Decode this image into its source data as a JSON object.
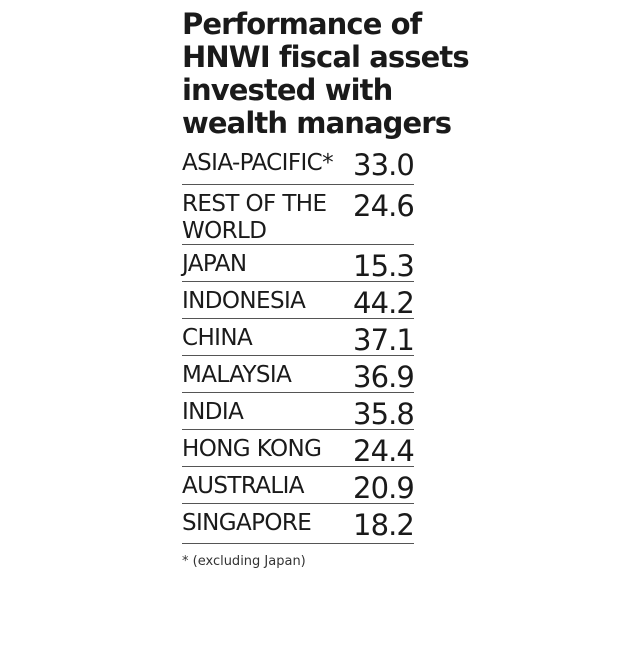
{
  "chart_data": {
    "type": "table",
    "title": "Performance of HNWI fiscal assets invested with wealth managers",
    "title_lines": [
      "Performance of",
      "HNWI fiscal assets",
      "invested with",
      "wealth managers"
    ],
    "categories": [
      "ASIA-PACIFIC*",
      "REST OF THE WORLD",
      "JAPAN",
      "INDONESIA",
      "CHINA",
      "MALAYSIA",
      "INDIA",
      "HONG KONG",
      "AUSTRALIA",
      "SINGAPORE"
    ],
    "values": [
      33.0,
      24.6,
      15.3,
      44.2,
      37.1,
      36.9,
      35.8,
      24.4,
      20.9,
      18.2
    ],
    "rows": [
      {
        "label": "ASIA-PACIFIC*",
        "value": "33.0"
      },
      {
        "label": "REST OF THE WORLD",
        "value": "24.6"
      },
      {
        "label": "JAPAN",
        "value": "15.3"
      },
      {
        "label": "INDONESIA",
        "value": "44.2"
      },
      {
        "label": "CHINA",
        "value": "37.1"
      },
      {
        "label": "MALAYSIA",
        "value": "36.9"
      },
      {
        "label": "INDIA",
        "value": "35.8"
      },
      {
        "label": "HONG KONG",
        "value": "24.4"
      },
      {
        "label": "AUSTRALIA",
        "value": "20.9"
      },
      {
        "label": "SINGAPORE",
        "value": "18.2"
      }
    ],
    "footnote": "* (excluding Japan)",
    "grid": true
  },
  "colors": {
    "text": "#1a1a1a",
    "rule": "#555555",
    "background": "#ffffff"
  }
}
